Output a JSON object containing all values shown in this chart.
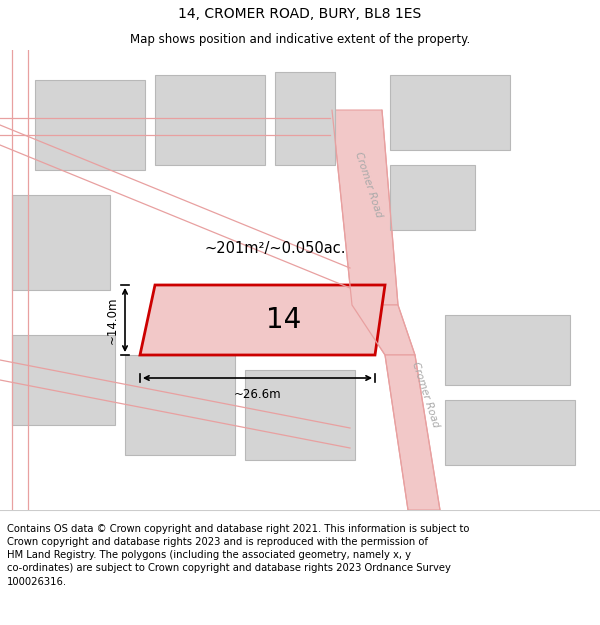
{
  "title": "14, CROMER ROAD, BURY, BL8 1ES",
  "subtitle": "Map shows position and indicative extent of the property.",
  "footer": "Contains OS data © Crown copyright and database right 2021. This information is subject to\nCrown copyright and database rights 2023 and is reproduced with the permission of\nHM Land Registry. The polygons (including the associated geometry, namely x, y\nco-ordinates) are subject to Crown copyright and database rights 2023 Ordnance Survey\n100026316.",
  "map_bg": "#eeeeee",
  "road_color": "#f2c8c8",
  "road_edge": "#e8a0a0",
  "building_fill": "#d4d4d4",
  "building_edge": "#b8b8b8",
  "highlight_fill": "#f2c8c8",
  "highlight_edge": "#cc0000",
  "road_label": "Cromer Road",
  "area_label": "~201m²/~0.050ac.",
  "plot_label": "14",
  "dim_width": "~26.6m",
  "dim_height": "~14.0m",
  "title_fontsize": 10,
  "subtitle_fontsize": 8.5,
  "footer_fontsize": 7.2,
  "title_color": "#000000",
  "label_color": "#888888",
  "road_label_color": "#aaaaaa"
}
